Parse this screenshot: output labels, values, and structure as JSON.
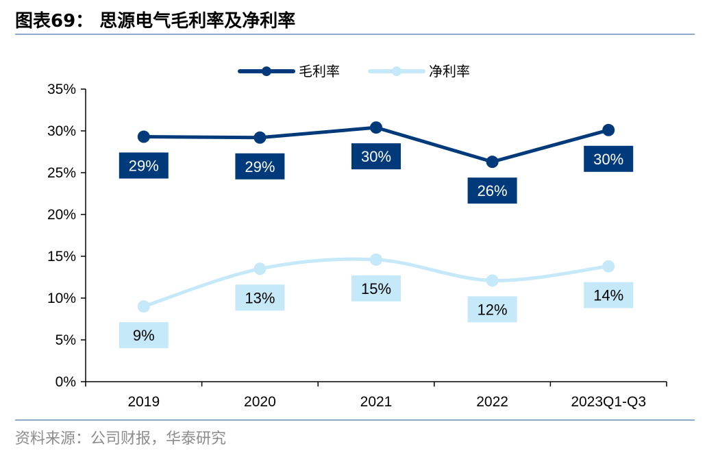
{
  "header": {
    "title": "图表69：  思源电气毛利率及净利率"
  },
  "footer": {
    "source": "资料来源：公司财报，华泰研究"
  },
  "colors": {
    "gross": "#003a7a",
    "net": "#c5e9f8",
    "rule": "#8eaacb"
  },
  "chart_data": {
    "type": "line",
    "categories": [
      "2019",
      "2020",
      "2021",
      "2022",
      "2023Q1-Q3"
    ],
    "series": [
      {
        "name": "毛利率",
        "values": [
          29.3,
          29.2,
          30.4,
          26.3,
          30.1
        ],
        "labels": [
          "29%",
          "29%",
          "30%",
          "26%",
          "30%"
        ]
      },
      {
        "name": "净利率",
        "values": [
          9.0,
          13.5,
          14.6,
          12.1,
          13.8
        ],
        "labels": [
          "9%",
          "13%",
          "15%",
          "12%",
          "14%"
        ]
      }
    ],
    "yticks": [
      "0%",
      "5%",
      "10%",
      "15%",
      "20%",
      "25%",
      "30%",
      "35%"
    ],
    "ylim": [
      0,
      35
    ],
    "legend": "top-center"
  }
}
